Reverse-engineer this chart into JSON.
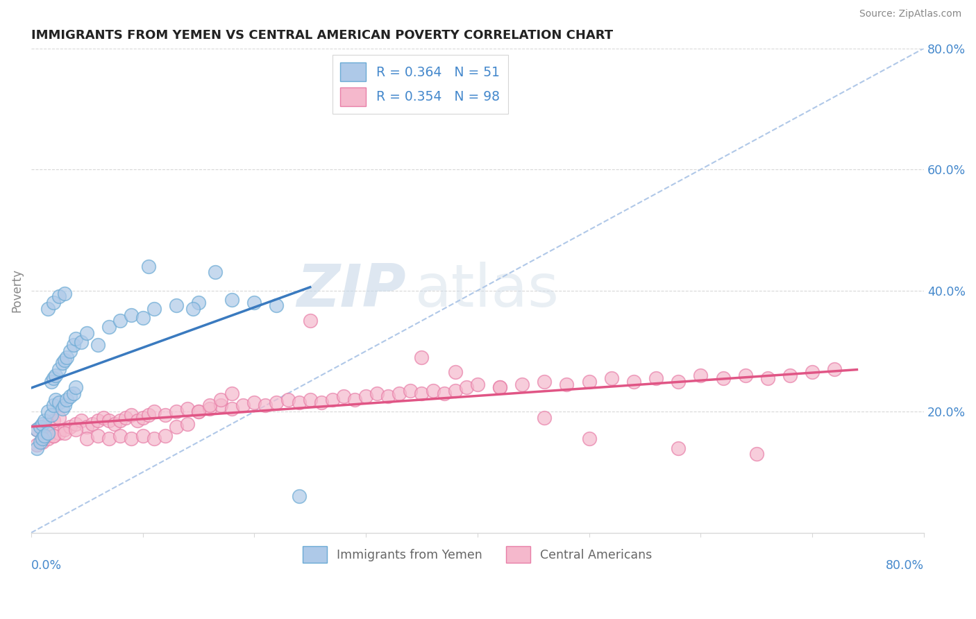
{
  "title": "IMMIGRANTS FROM YEMEN VS CENTRAL AMERICAN POVERTY CORRELATION CHART",
  "source": "Source: ZipAtlas.com",
  "ylabel": "Poverty",
  "watermark_zip": "ZIP",
  "watermark_atlas": "atlas",
  "legend1_label": "R = 0.364   N = 51",
  "legend2_label": "R = 0.354   N = 98",
  "legend1_series": "Immigrants from Yemen",
  "legend2_series": "Central Americans",
  "blue_face": "#aec9e8",
  "pink_face": "#f5b8cc",
  "blue_edge": "#6aaad4",
  "pink_edge": "#e87fa8",
  "blue_line": "#3a7abf",
  "pink_line": "#e05585",
  "diag_color": "#b0c8e8",
  "grid_color": "#d8d8d8",
  "raxis_color": "#4488cc",
  "xlim": [
    0.0,
    0.8
  ],
  "ylim": [
    0.0,
    0.8
  ],
  "blue_x": [
    0.005,
    0.008,
    0.01,
    0.012,
    0.015,
    0.018,
    0.02,
    0.022,
    0.025,
    0.028,
    0.03,
    0.032,
    0.035,
    0.038,
    0.04,
    0.005,
    0.008,
    0.01,
    0.012,
    0.015,
    0.018,
    0.02,
    0.022,
    0.025,
    0.028,
    0.03,
    0.032,
    0.035,
    0.038,
    0.04,
    0.045,
    0.05,
    0.06,
    0.07,
    0.08,
    0.09,
    0.1,
    0.11,
    0.13,
    0.15,
    0.165,
    0.015,
    0.02,
    0.025,
    0.03,
    0.18,
    0.2,
    0.22,
    0.105,
    0.145,
    0.24
  ],
  "blue_y": [
    0.17,
    0.175,
    0.18,
    0.185,
    0.2,
    0.195,
    0.21,
    0.22,
    0.215,
    0.205,
    0.21,
    0.22,
    0.225,
    0.23,
    0.24,
    0.14,
    0.15,
    0.155,
    0.16,
    0.165,
    0.25,
    0.255,
    0.26,
    0.27,
    0.28,
    0.285,
    0.29,
    0.3,
    0.31,
    0.32,
    0.315,
    0.33,
    0.31,
    0.34,
    0.35,
    0.36,
    0.355,
    0.37,
    0.375,
    0.38,
    0.43,
    0.37,
    0.38,
    0.39,
    0.395,
    0.385,
    0.38,
    0.375,
    0.44,
    0.37,
    0.06
  ],
  "pink_x": [
    0.005,
    0.01,
    0.015,
    0.02,
    0.025,
    0.005,
    0.01,
    0.015,
    0.02,
    0.025,
    0.03,
    0.035,
    0.04,
    0.045,
    0.05,
    0.055,
    0.06,
    0.065,
    0.07,
    0.075,
    0.08,
    0.085,
    0.09,
    0.095,
    0.1,
    0.105,
    0.11,
    0.12,
    0.13,
    0.14,
    0.15,
    0.16,
    0.17,
    0.18,
    0.19,
    0.2,
    0.21,
    0.22,
    0.23,
    0.24,
    0.25,
    0.26,
    0.27,
    0.28,
    0.29,
    0.3,
    0.31,
    0.32,
    0.33,
    0.34,
    0.35,
    0.36,
    0.37,
    0.38,
    0.39,
    0.4,
    0.42,
    0.44,
    0.46,
    0.48,
    0.5,
    0.52,
    0.54,
    0.56,
    0.58,
    0.6,
    0.62,
    0.64,
    0.66,
    0.68,
    0.7,
    0.72,
    0.01,
    0.02,
    0.03,
    0.04,
    0.05,
    0.06,
    0.07,
    0.08,
    0.09,
    0.1,
    0.11,
    0.12,
    0.13,
    0.14,
    0.15,
    0.16,
    0.17,
    0.18,
    0.25,
    0.35,
    0.38,
    0.42,
    0.46,
    0.5,
    0.58,
    0.65
  ],
  "pink_y": [
    0.145,
    0.15,
    0.155,
    0.16,
    0.165,
    0.17,
    0.175,
    0.18,
    0.185,
    0.19,
    0.17,
    0.175,
    0.18,
    0.185,
    0.175,
    0.18,
    0.185,
    0.19,
    0.185,
    0.18,
    0.185,
    0.19,
    0.195,
    0.185,
    0.19,
    0.195,
    0.2,
    0.195,
    0.2,
    0.205,
    0.2,
    0.205,
    0.21,
    0.205,
    0.21,
    0.215,
    0.21,
    0.215,
    0.22,
    0.215,
    0.22,
    0.215,
    0.22,
    0.225,
    0.22,
    0.225,
    0.23,
    0.225,
    0.23,
    0.235,
    0.23,
    0.235,
    0.23,
    0.235,
    0.24,
    0.245,
    0.24,
    0.245,
    0.25,
    0.245,
    0.25,
    0.255,
    0.25,
    0.255,
    0.25,
    0.26,
    0.255,
    0.26,
    0.255,
    0.26,
    0.265,
    0.27,
    0.155,
    0.16,
    0.165,
    0.17,
    0.155,
    0.16,
    0.155,
    0.16,
    0.155,
    0.16,
    0.155,
    0.16,
    0.175,
    0.18,
    0.2,
    0.21,
    0.22,
    0.23,
    0.35,
    0.29,
    0.265,
    0.24,
    0.19,
    0.155,
    0.14,
    0.13
  ]
}
